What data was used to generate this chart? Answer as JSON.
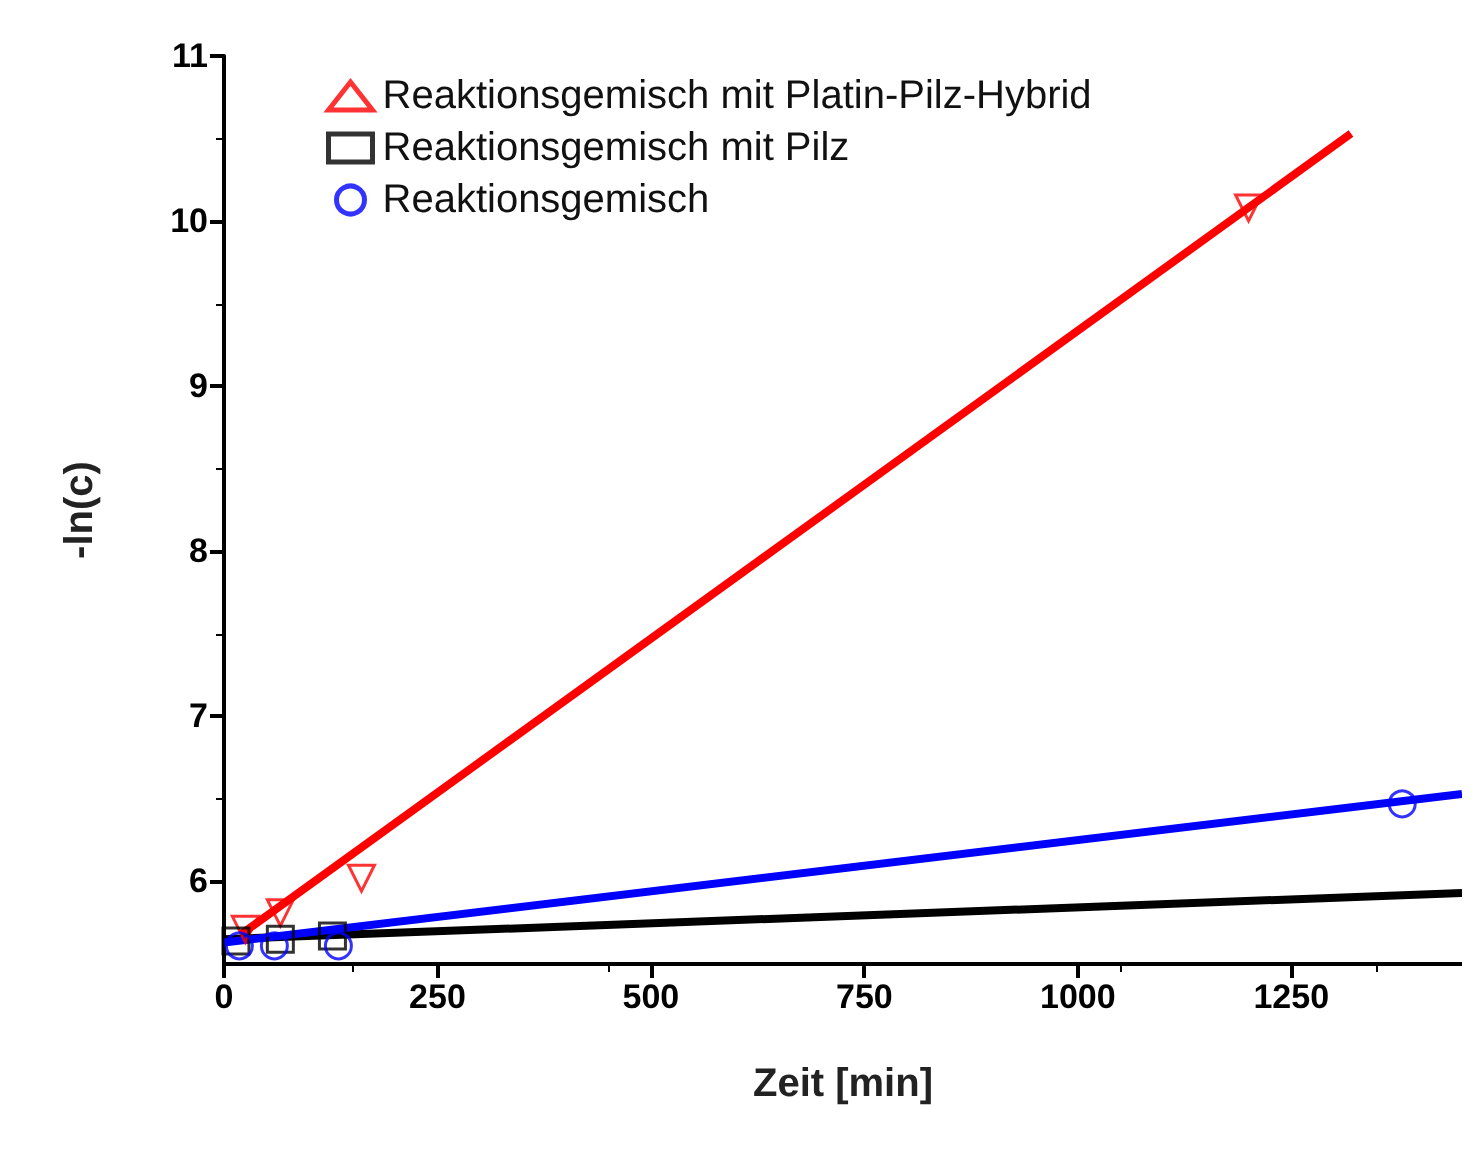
{
  "chart_data": {
    "type": "scatter",
    "xlabel": "Zeit [min]",
    "ylabel": "-ln(c)",
    "xlim": [
      0,
      1450
    ],
    "xticks": [
      0,
      250,
      500,
      750,
      1000,
      1250
    ],
    "ylim": [
      5.5,
      11
    ],
    "yticks": [
      6,
      7,
      8,
      9,
      10,
      11
    ],
    "grid": false,
    "legend": "top left",
    "series": [
      {
        "name": "Reaktionsgemisch mit Platin-Pilz-Hybrid",
        "color": "#ff0000",
        "marker": "triangle",
        "x": [
          25,
          66,
          161,
          1200
        ],
        "values": [
          5.71,
          5.81,
          6.02,
          10.08
        ]
      },
      {
        "name": "Reaktionsgemisch mit Pilz",
        "color": "#000000",
        "marker": "square",
        "x": [
          14,
          66,
          127
        ],
        "values": [
          5.64,
          5.65,
          5.67
        ]
      },
      {
        "name": "Reaktionsgemisch",
        "color": "#0000ff",
        "marker": "circle",
        "x": [
          18,
          59,
          134,
          1380
        ],
        "values": [
          5.61,
          5.61,
          5.61,
          6.47
        ]
      },
      {
        "type": "line",
        "color": "#ff0000",
        "marker": "none",
        "x": [
          20,
          1320
        ],
        "values": [
          5.68,
          10.53
        ]
      },
      {
        "type": "line",
        "color": "#000000",
        "marker": "none",
        "x": [
          0,
          1450
        ],
        "values": [
          5.65,
          5.93
        ]
      },
      {
        "type": "line",
        "color": "#0000ff",
        "marker": "none",
        "x": [
          0,
          1450
        ],
        "values": [
          5.63,
          6.53
        ]
      }
    ]
  }
}
